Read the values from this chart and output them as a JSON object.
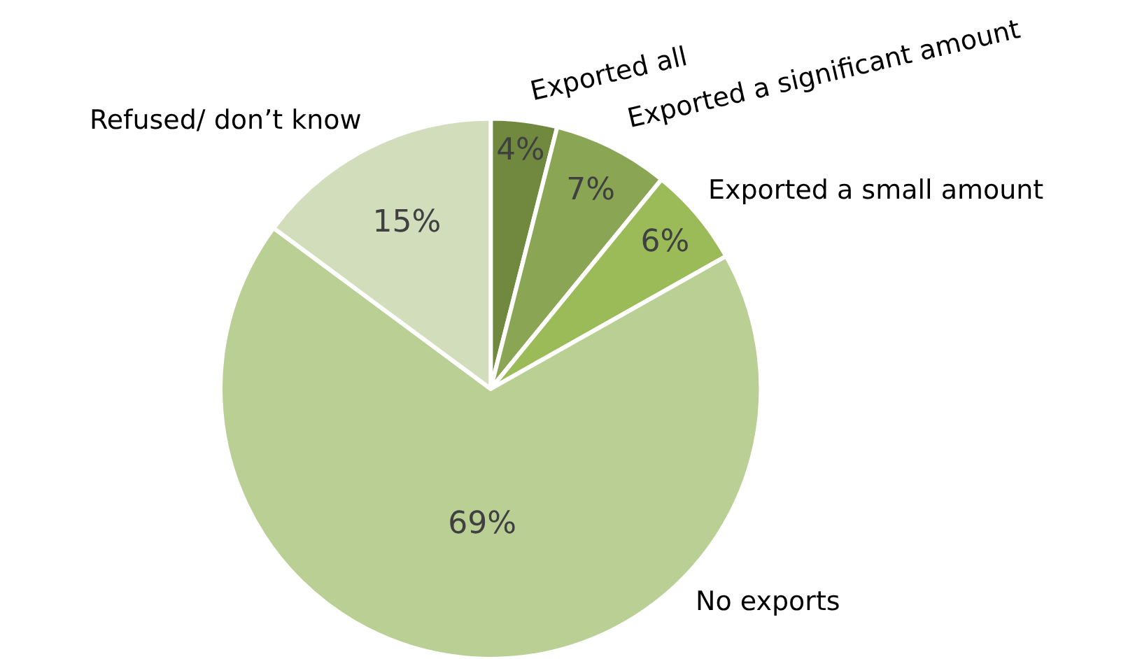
{
  "chart_data": {
    "type": "pie",
    "categories": [
      "Exported all",
      "Exported a significant amount",
      "Exported a small amount",
      "No exports",
      "Refused/ don’t know"
    ],
    "values": [
      4,
      7,
      6,
      69,
      15
    ],
    "colors": [
      "#71893f",
      "#8aa654",
      "#9bbb59",
      "#b9cf94",
      "#d2ddbb"
    ],
    "value_labels": [
      "4%",
      "7%",
      "6%",
      "69%",
      "15%"
    ],
    "legend": false
  }
}
